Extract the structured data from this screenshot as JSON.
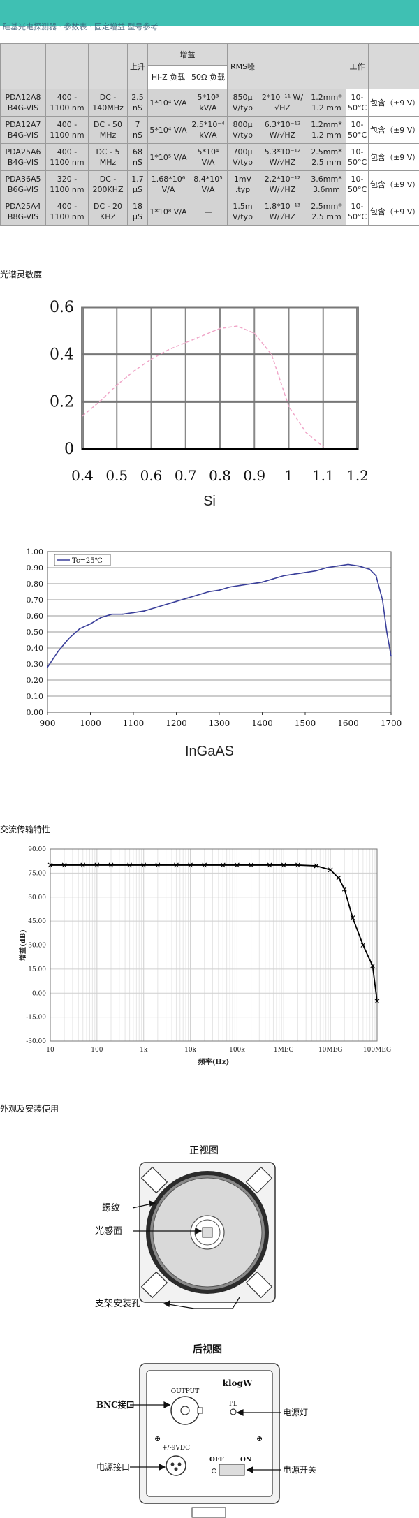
{
  "header": {
    "fragment_text": "硅基光电探测器 · 参数表 · 固定增益 型号参考"
  },
  "table": {
    "col_headers": [
      "",
      "",
      "",
      "上升",
      "增益",
      "",
      "RMS噪",
      "",
      "",
      "工作",
      ""
    ],
    "gain_sub": [
      "Hi-Z 负载",
      "50Ω 负载"
    ],
    "rows": [
      [
        "PDA12A8 B4G-VIS",
        "400 - 1100 nm",
        "DC - 140MHz",
        "2.5 nS",
        "1*10⁴ V/A",
        "5*10³ kV/A",
        "850μ V/typ",
        "2*10⁻¹¹ W/√HZ",
        "1.2mm* 1.2 mm",
        "10-50°C",
        "包含（±9 V）"
      ],
      [
        "PDA12A7 B4G-VIS",
        "400 - 1100 nm",
        "DC - 50 MHz",
        "7 nS",
        "5*10⁴ V/A",
        "2.5*10⁻⁴ kV/A",
        "800μ V/typ",
        "6.3*10⁻¹² W/√HZ",
        "1.2mm* 1.2 mm",
        "10-50°C",
        "包含（±9 V）"
      ],
      [
        "PDA25A6 B4G-VIS",
        "400 - 1100 nm",
        "DC - 5 MHz",
        "68 nS",
        "1*10⁵ V/A",
        "5*10⁴ V/A",
        "700μ V/typ",
        "5.3*10⁻¹² W/√HZ",
        "2.5mm* 2.5 mm",
        "10-50°C",
        "包含（±9 V）"
      ],
      [
        "PDA36A5 B6G-VIS",
        "320 - 1100 nm",
        "DC - 200KHZ",
        "1.7 μS",
        "1.68*10⁶ V/A",
        "8.4*10⁵ V/A",
        "1mV .typ",
        "2.2*10⁻¹² W/√HZ",
        "3.6mm* 3.6mm",
        "10-50°C",
        "包含（±9 V）"
      ],
      [
        "PDA25A4 B8G-VIS",
        "400 - 1100 nm",
        "DC - 20 KHZ",
        "18 μS",
        "1*10⁸ V/A",
        "—",
        "1.5m V/typ",
        "1.8*10⁻¹³ W/√HZ",
        "2.5mm* 2.5 mm",
        "10-50°C",
        "包含（±9 V）"
      ]
    ]
  },
  "sections": {
    "spectral": "光谱灵敏度",
    "ac": "交流传输特性",
    "appearance": "外观及安装使用"
  },
  "charts": {
    "si_label": "Si",
    "ingaas_label": "InGaAS",
    "ingaas_legend": "Tc=25℃",
    "ac_ylabel": "增益(dB)",
    "ac_xlabel": "频率(Hz)"
  },
  "chart_data": [
    {
      "type": "line",
      "title": "",
      "xlabel": "",
      "ylabel": "",
      "x_ticks": [
        "0.4",
        "0.5",
        "0.6",
        "0.7",
        "0.8",
        "0.9",
        "1",
        "1.1",
        "1.2"
      ],
      "y_ticks": [
        "0",
        "0.2",
        "0.4",
        "0.6"
      ],
      "xlim": [
        0.4,
        1.2
      ],
      "ylim": [
        0,
        0.6
      ],
      "grid": true,
      "series": [
        {
          "name": "",
          "x": [
            0.4,
            0.45,
            0.5,
            0.55,
            0.6,
            0.65,
            0.7,
            0.75,
            0.8,
            0.85,
            0.9,
            0.95,
            1.0,
            1.05,
            1.1
          ],
          "y": [
            0.14,
            0.2,
            0.27,
            0.33,
            0.38,
            0.42,
            0.45,
            0.48,
            0.51,
            0.52,
            0.49,
            0.4,
            0.18,
            0.07,
            0.01
          ]
        }
      ]
    },
    {
      "type": "line",
      "title": "",
      "xlabel": "",
      "ylabel": "",
      "x_ticks": [
        "900",
        "1000",
        "1100",
        "1200",
        "1300",
        "1400",
        "1500",
        "1600",
        "1700"
      ],
      "y_ticks": [
        "0.00",
        "0.10",
        "0.20",
        "0.30",
        "0.40",
        "0.50",
        "0.60",
        "0.70",
        "0.80",
        "0.90",
        "1.00"
      ],
      "xlim": [
        900,
        1700
      ],
      "ylim": [
        0,
        1
      ],
      "grid": true,
      "series": [
        {
          "name": "Tc=25℃",
          "x": [
            900,
            925,
            950,
            975,
            1000,
            1025,
            1050,
            1075,
            1100,
            1125,
            1150,
            1175,
            1200,
            1225,
            1250,
            1275,
            1300,
            1325,
            1350,
            1375,
            1400,
            1425,
            1450,
            1475,
            1500,
            1525,
            1550,
            1575,
            1600,
            1625,
            1650,
            1665,
            1680,
            1690,
            1700
          ],
          "y": [
            0.28,
            0.38,
            0.46,
            0.52,
            0.55,
            0.59,
            0.61,
            0.61,
            0.62,
            0.63,
            0.65,
            0.67,
            0.69,
            0.71,
            0.73,
            0.75,
            0.76,
            0.78,
            0.79,
            0.8,
            0.81,
            0.83,
            0.85,
            0.86,
            0.87,
            0.88,
            0.9,
            0.91,
            0.92,
            0.91,
            0.89,
            0.85,
            0.7,
            0.5,
            0.35
          ]
        }
      ]
    },
    {
      "type": "line",
      "title": "",
      "xlabel": "频率(Hz)",
      "ylabel": "增益(dB)",
      "x_ticks": [
        "10",
        "100",
        "1k",
        "10k",
        "100k",
        "1MEG",
        "10MEG",
        "100MEG"
      ],
      "y_ticks": [
        "-30.00",
        "-15.00",
        "0.00",
        "15.00",
        "30.00",
        "45.00",
        "60.00",
        "75.00",
        "90.00"
      ],
      "x_scale": "log",
      "xlim": [
        10,
        100000000
      ],
      "ylim": [
        -30,
        90
      ],
      "grid": true,
      "series": [
        {
          "name": "",
          "x": [
            10,
            20,
            50,
            100,
            200,
            500,
            1000,
            2000,
            5000,
            10000,
            20000,
            50000,
            100000,
            200000,
            500000,
            1000000,
            2000000,
            5000000,
            10000000,
            15000000,
            20000000,
            30000000,
            50000000,
            80000000,
            100000000
          ],
          "y": [
            80,
            80,
            80,
            80,
            80,
            80,
            80,
            80,
            80,
            80,
            80,
            80,
            80,
            80,
            80,
            80,
            80,
            79.5,
            77,
            72,
            65,
            47,
            30,
            17,
            -5
          ]
        }
      ]
    }
  ],
  "diagrams": {
    "front_title": "正视图",
    "front_labels": [
      "螺纹",
      "光感面",
      "支架安装孔"
    ],
    "back_title": "后视图",
    "back_brand": "klogW",
    "back_labels": [
      "BNC接口",
      "电源灯",
      "电源接口",
      "电源开关"
    ],
    "back_panel_text": [
      "OUTPUT",
      "PL",
      "+/-9VDC",
      "OFF",
      "ON"
    ]
  }
}
